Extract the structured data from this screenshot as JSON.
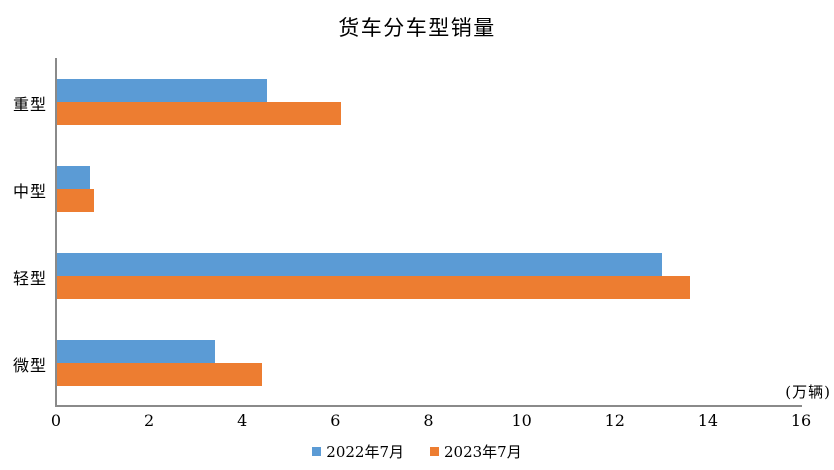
{
  "chart": {
    "title": "货车分车型销量",
    "unit_label": "(万辆)"
  },
  "chart_data": {
    "type": "bar",
    "orientation": "horizontal",
    "title": "货车分车型销量",
    "categories": [
      "重型",
      "中型",
      "轻型",
      "微型"
    ],
    "series": [
      {
        "name": "2022年7月",
        "color": "#5B9BD5",
        "values": [
          4.5,
          0.7,
          13.0,
          3.4
        ]
      },
      {
        "name": "2023年7月",
        "color": "#ED7D31",
        "values": [
          6.1,
          0.8,
          13.6,
          4.4
        ]
      }
    ],
    "xlim": [
      0,
      16
    ],
    "x_ticks": [
      0,
      2,
      4,
      6,
      8,
      10,
      12,
      14,
      16
    ],
    "unit_label": "(万辆)",
    "legend_position": "bottom",
    "gridlines": false,
    "axis_color": "#8a8a8a"
  }
}
